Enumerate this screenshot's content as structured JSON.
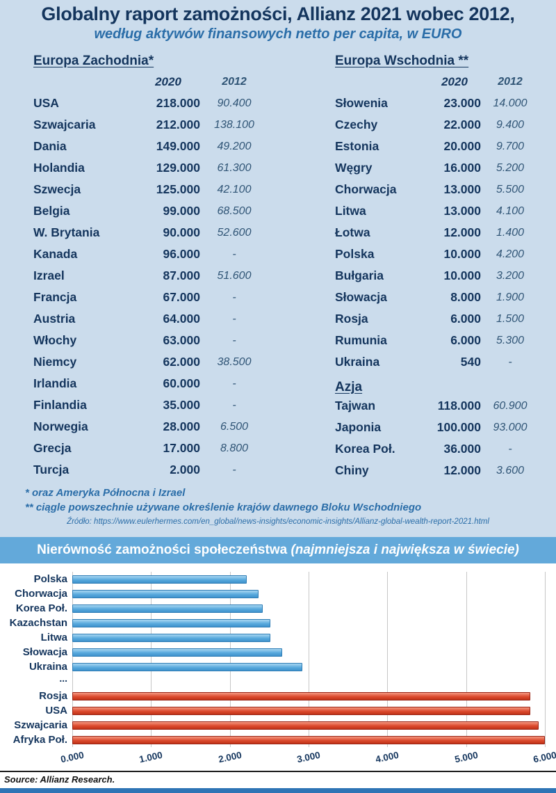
{
  "header": {
    "title": "Globalny raport zamożności, Allianz 2021 wobec 2012,",
    "subtitle": "według aktywów finansowych netto per capita, w EURO"
  },
  "footnotes": {
    "note1": "* oraz Ameryka Północna i Izrael",
    "note2": "** ciągle powszechnie używane określenie krajów dawnego Bloku Wschodniego",
    "source_url": "Źródło: https://www.eulerhermes.com/en_global/news-insights/economic-insights/Allianz-global-wealth-report-2021.html"
  },
  "chart_data": [
    {
      "type": "table",
      "title": "Europa Zachodnia*",
      "columns": [
        "",
        "2020",
        "2012"
      ],
      "rows": [
        [
          "USA",
          "218.000",
          "90.400"
        ],
        [
          "Szwajcaria",
          "212.000",
          "138.100"
        ],
        [
          "Dania",
          "149.000",
          "49.200"
        ],
        [
          "Holandia",
          "129.000",
          "61.300"
        ],
        [
          "Szwecja",
          "125.000",
          "42.100"
        ],
        [
          "Belgia",
          "99.000",
          "68.500"
        ],
        [
          "W. Brytania",
          "90.000",
          "52.600"
        ],
        [
          "Kanada",
          "96.000",
          "-"
        ],
        [
          "Izrael",
          "87.000",
          "51.600"
        ],
        [
          "Francja",
          "67.000",
          "-"
        ],
        [
          "Austria",
          "64.000",
          "-"
        ],
        [
          "Włochy",
          "63.000",
          "-"
        ],
        [
          "Niemcy",
          "62.000",
          "38.500"
        ],
        [
          "Irlandia",
          "60.000",
          "-"
        ],
        [
          "Finlandia",
          "35.000",
          "-"
        ],
        [
          "Norwegia",
          "28.000",
          "6.500"
        ],
        [
          "Grecja",
          "17.000",
          "8.800"
        ],
        [
          "Turcja",
          "2.000",
          "-"
        ]
      ]
    },
    {
      "type": "table",
      "title": "Europa Wschodnia **",
      "columns": [
        "",
        "2020",
        "2012"
      ],
      "rows": [
        [
          "Słowenia",
          "23.000",
          "14.000"
        ],
        [
          "Czechy",
          "22.000",
          "9.400"
        ],
        [
          "Estonia",
          "20.000",
          "9.700"
        ],
        [
          "Węgry",
          "16.000",
          "5.200"
        ],
        [
          "Chorwacja",
          "13.000",
          "5.500"
        ],
        [
          "Litwa",
          "13.000",
          "4.100"
        ],
        [
          "Łotwa",
          "12.000",
          "1.400"
        ],
        [
          "Polska",
          "10.000",
          "4.200"
        ],
        [
          "Bułgaria",
          "10.000",
          "3.200"
        ],
        [
          "Słowacja",
          "8.000",
          "1.900"
        ],
        [
          "Rosja",
          "6.000",
          "1.500"
        ],
        [
          "Rumunia",
          "6.000",
          "5.300"
        ],
        [
          "Ukraina",
          "540",
          "-"
        ]
      ]
    },
    {
      "type": "table",
      "title": "Azja",
      "rows": [
        [
          "Tajwan",
          "118.000",
          "60.900"
        ],
        [
          "Japonia",
          "100.000",
          "93.000"
        ],
        [
          "Korea Poł.",
          "36.000",
          "-"
        ],
        [
          "Chiny",
          "12.000",
          "3.600"
        ]
      ]
    },
    {
      "type": "bar",
      "orientation": "horizontal",
      "title": "Nierówność zamożności społeczeństwa",
      "title_note": "(najmniejsza i największa w świecie)",
      "categories": [
        "Polska",
        "Chorwacja",
        "Korea Poł.",
        "Kazachstan",
        "Litwa",
        "Słowacja",
        "Ukraina",
        "...",
        "Rosja",
        "USA",
        "Szwajcaria",
        "Afryka Poł."
      ],
      "values": [
        2.2,
        2.35,
        2.4,
        2.5,
        2.5,
        2.65,
        2.9,
        null,
        5.8,
        5.8,
        5.9,
        6.0
      ],
      "bar_groups": [
        "blue",
        "blue",
        "blue",
        "blue",
        "blue",
        "blue",
        "blue",
        "none",
        "red",
        "red",
        "red",
        "red"
      ],
      "colors": {
        "blue": "#57a8dc",
        "red": "#d6422a"
      },
      "xlim": [
        0,
        6
      ],
      "x_ticks": [
        "0.000",
        "1.000",
        "2.000",
        "3.000",
        "4.000",
        "5.000",
        "6.000"
      ],
      "grid": true,
      "legend": false,
      "source": "Source: Allianz Research."
    }
  ]
}
